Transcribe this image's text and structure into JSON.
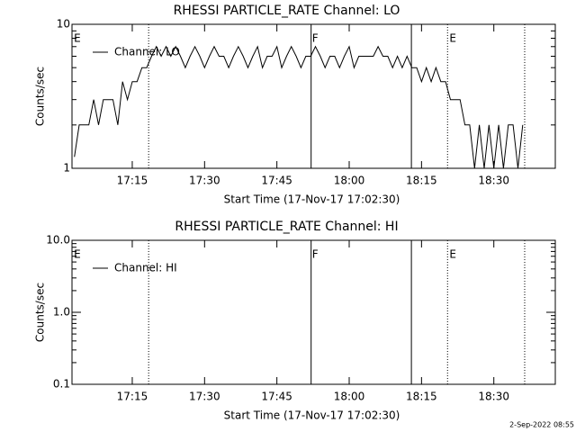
{
  "footer": "2-Sep-2022 08:55",
  "chart_data": [
    {
      "type": "line",
      "title": "RHESSI PARTICLE_RATE Channel: LO",
      "xlabel": "Start Time (17-Nov-17 17:02:30)",
      "ylabel": "Counts/sec",
      "xlim": [
        1022.5,
        1122.75
      ],
      "ylim": [
        1,
        10
      ],
      "log_y": true,
      "xticks": [
        {
          "value": 1035,
          "label": "17:15"
        },
        {
          "value": 1050,
          "label": "17:30"
        },
        {
          "value": 1065,
          "label": "17:45"
        },
        {
          "value": 1080,
          "label": "18:00"
        },
        {
          "value": 1095,
          "label": "18:15"
        },
        {
          "value": 1110,
          "label": "18:30"
        }
      ],
      "yticks": [
        1,
        10
      ],
      "yminorticks": [
        2,
        3,
        4,
        5,
        6,
        7,
        8,
        9
      ],
      "legend": "upper left",
      "series": [
        {
          "name": "Channel: LO",
          "color": "#000000",
          "x": [
            1023,
            1024,
            1025,
            1026,
            1027,
            1028,
            1029,
            1030,
            1031,
            1032,
            1033,
            1034,
            1035,
            1036,
            1037,
            1038,
            1039,
            1040,
            1041,
            1042,
            1043,
            1044,
            1045,
            1046,
            1047,
            1048,
            1049,
            1050,
            1051,
            1052,
            1053,
            1054,
            1055,
            1056,
            1057,
            1058,
            1059,
            1060,
            1061,
            1062,
            1063,
            1064,
            1065,
            1066,
            1067,
            1068,
            1069,
            1070,
            1071,
            1072,
            1073,
            1074,
            1075,
            1076,
            1077,
            1078,
            1079,
            1080,
            1081,
            1082,
            1083,
            1084,
            1085,
            1086,
            1087,
            1088,
            1089,
            1090,
            1091,
            1092,
            1093,
            1094,
            1095,
            1096,
            1097,
            1098,
            1099,
            1100,
            1101,
            1102,
            1103,
            1104,
            1105,
            1106,
            1107,
            1108,
            1109,
            1110,
            1111,
            1112,
            1113,
            1114,
            1115,
            1116
          ],
          "values": [
            1.2,
            2,
            2,
            2,
            3,
            2,
            3,
            3,
            3,
            2,
            4,
            3,
            4,
            4,
            5,
            5,
            6,
            7,
            6,
            7,
            6,
            7,
            6,
            5,
            6,
            7,
            6,
            5,
            6,
            7,
            6,
            6,
            5,
            6,
            7,
            6,
            5,
            6,
            7,
            5,
            6,
            6,
            7,
            5,
            6,
            7,
            6,
            5,
            6,
            6,
            7,
            6,
            5,
            6,
            6,
            5,
            6,
            7,
            5,
            6,
            6,
            6,
            6,
            7,
            6,
            6,
            5,
            6,
            5,
            6,
            5,
            5,
            4,
            5,
            4,
            5,
            4,
            4,
            3,
            3,
            3,
            2,
            2,
            1,
            2,
            1,
            2,
            1,
            2,
            1,
            2,
            2,
            1,
            2
          ]
        }
      ],
      "vlines": [
        {
          "x": 1038.4,
          "style": "dotted"
        },
        {
          "x": 1072.1,
          "style": "solid"
        },
        {
          "x": 1092.9,
          "style": "solid"
        },
        {
          "x": 1100.4,
          "style": "dotted"
        },
        {
          "x": 1116.4,
          "style": "dotted"
        }
      ],
      "markers": [
        {
          "x": 1022.9,
          "label": "E"
        },
        {
          "x": 1072.3,
          "label": "F"
        },
        {
          "x": 1100.8,
          "label": "E"
        }
      ]
    },
    {
      "type": "line",
      "title": "RHESSI PARTICLE_RATE Channel: HI",
      "xlabel": "Start Time (17-Nov-17 17:02:30)",
      "ylabel": "Counts/sec",
      "xlim": [
        1022.5,
        1122.75
      ],
      "ylim": [
        0.1,
        10
      ],
      "log_y": true,
      "xticks": [
        {
          "value": 1035,
          "label": "17:15"
        },
        {
          "value": 1050,
          "label": "17:30"
        },
        {
          "value": 1065,
          "label": "17:45"
        },
        {
          "value": 1080,
          "label": "18:00"
        },
        {
          "value": 1095,
          "label": "18:15"
        },
        {
          "value": 1110,
          "label": "18:30"
        }
      ],
      "yticks": [
        {
          "value": 0.1,
          "label": "0.1"
        },
        {
          "value": 1,
          "label": "1.0"
        },
        {
          "value": 10,
          "label": "10.0"
        }
      ],
      "yminorticks": [
        0.2,
        0.3,
        0.4,
        0.5,
        0.6,
        0.7,
        0.8,
        0.9,
        2,
        3,
        4,
        5,
        6,
        7,
        8,
        9
      ],
      "legend": "upper left",
      "series": [
        {
          "name": "Channel: HI",
          "color": "#000000",
          "x": [],
          "values": []
        }
      ],
      "vlines": [
        {
          "x": 1038.4,
          "style": "dotted"
        },
        {
          "x": 1072.1,
          "style": "solid"
        },
        {
          "x": 1092.9,
          "style": "solid"
        },
        {
          "x": 1100.4,
          "style": "dotted"
        },
        {
          "x": 1116.4,
          "style": "dotted"
        }
      ],
      "markers": [
        {
          "x": 1022.9,
          "label": "E"
        },
        {
          "x": 1072.3,
          "label": "F"
        },
        {
          "x": 1100.8,
          "label": "E"
        }
      ]
    }
  ]
}
